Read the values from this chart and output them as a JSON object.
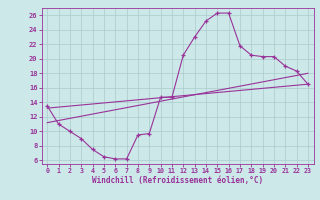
{
  "xlabel": "Windchill (Refroidissement éolien,°C)",
  "bg_color": "#cce8e8",
  "line_color": "#993399",
  "grid_color": "#aacccc",
  "xlim": [
    -0.5,
    23.5
  ],
  "ylim": [
    5.5,
    27.0
  ],
  "xticks": [
    0,
    1,
    2,
    3,
    4,
    5,
    6,
    7,
    8,
    9,
    10,
    11,
    12,
    13,
    14,
    15,
    16,
    17,
    18,
    19,
    20,
    21,
    22,
    23
  ],
  "yticks": [
    6,
    8,
    10,
    12,
    14,
    16,
    18,
    20,
    22,
    24,
    26
  ],
  "line1_x": [
    0,
    1,
    2,
    3,
    4,
    5,
    6,
    7,
    8,
    9,
    10,
    11,
    12,
    13,
    14,
    15,
    16,
    17,
    18,
    19,
    20,
    21,
    22,
    23
  ],
  "line1_y": [
    13.5,
    11.0,
    10.0,
    9.0,
    7.5,
    6.5,
    6.2,
    6.2,
    9.5,
    9.7,
    14.7,
    14.7,
    20.5,
    23.0,
    25.2,
    26.3,
    26.3,
    21.8,
    20.5,
    20.3,
    20.3,
    19.0,
    18.3,
    16.5
  ],
  "line2_x": [
    0,
    23
  ],
  "line2_y": [
    11.2,
    18.0
  ],
  "line3_x": [
    0,
    23
  ],
  "line3_y": [
    13.2,
    16.5
  ]
}
